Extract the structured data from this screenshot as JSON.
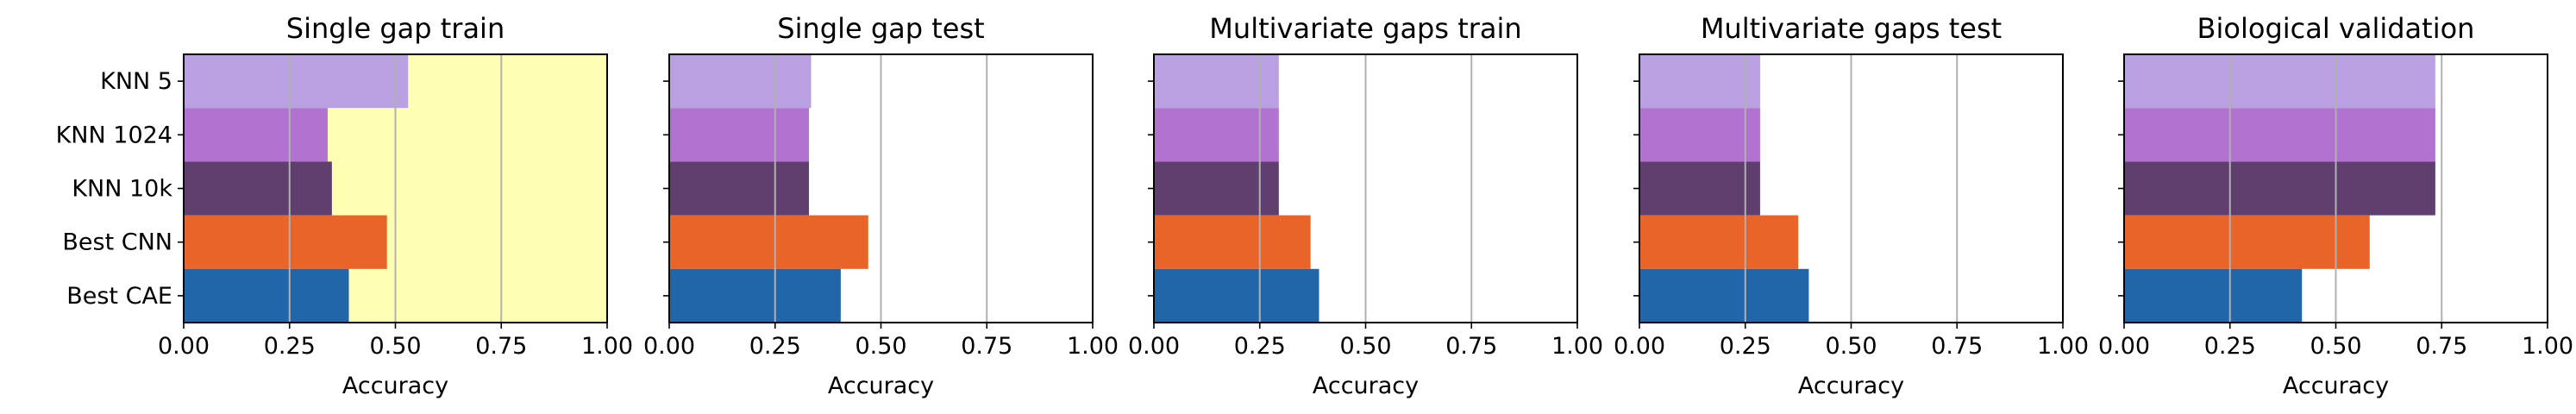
{
  "chart_data": {
    "type": "bar",
    "orientation": "horizontal",
    "categories": [
      "KNN 5",
      "KNN 1024",
      "KNN 10k",
      "Best CNN",
      "Best CAE"
    ],
    "category_colors": [
      "#b9a1e1",
      "#b273d0",
      "#5e3f6d",
      "#e96428",
      "#2066a8"
    ],
    "xlim": [
      0,
      1
    ],
    "xticks": [
      "0.00",
      "0.25",
      "0.50",
      "0.75",
      "1.00"
    ],
    "grid": "vertical",
    "panels": [
      {
        "title": "Single gap train",
        "xlabel": "Accuracy",
        "background": "#ffffb3",
        "values": [
          0.53,
          0.34,
          0.35,
          0.48,
          0.39
        ]
      },
      {
        "title": "Single gap test",
        "xlabel": "Accuracy",
        "background": "#ffffff",
        "values": [
          0.335,
          0.33,
          0.33,
          0.47,
          0.405
        ]
      },
      {
        "title": "Multivariate gaps train",
        "xlabel": "Accuracy",
        "background": "#ffffff",
        "values": [
          0.295,
          0.295,
          0.295,
          0.37,
          0.39
        ]
      },
      {
        "title": "Multivariate gaps test",
        "xlabel": "Accuracy",
        "background": "#ffffff",
        "values": [
          0.285,
          0.285,
          0.285,
          0.375,
          0.4
        ]
      },
      {
        "title": "Biological validation",
        "xlabel": "Accuracy",
        "background": "#ffffff",
        "values": [
          0.735,
          0.735,
          0.735,
          0.58,
          0.42
        ]
      }
    ]
  }
}
